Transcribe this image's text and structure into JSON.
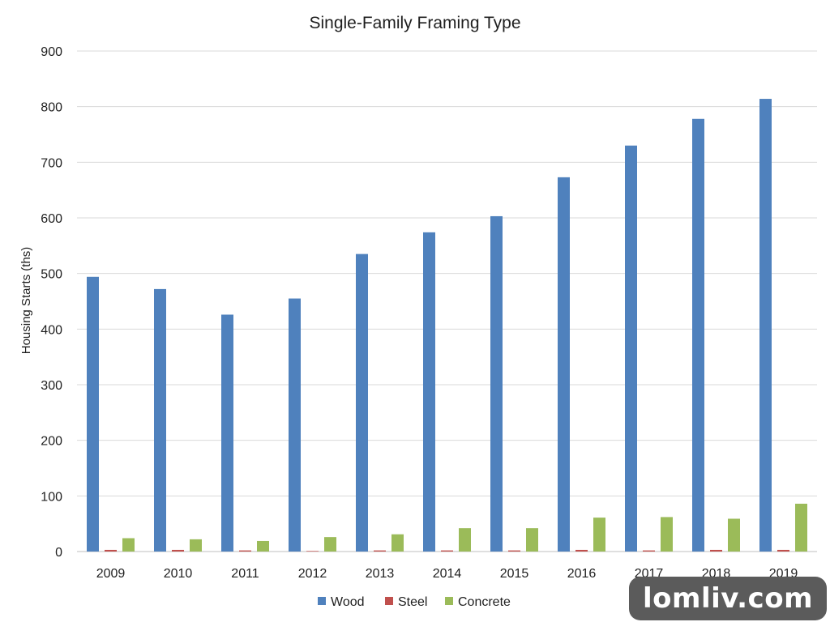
{
  "chart_data": {
    "type": "bar",
    "title": "Single-Family Framing Type",
    "xlabel": "",
    "ylabel": "Housing Starts (ths)",
    "ylim": [
      0,
      900
    ],
    "yticks": [
      0,
      100,
      200,
      300,
      400,
      500,
      600,
      700,
      800,
      900
    ],
    "grid": true,
    "legend_position": "bottom",
    "categories": [
      "2009",
      "2010",
      "2011",
      "2012",
      "2013",
      "2014",
      "2015",
      "2016",
      "2017",
      "2018",
      "2019"
    ],
    "series": [
      {
        "name": "Wood",
        "color": "#4f81bd",
        "values": [
          494,
          472,
          426,
          455,
          535,
          574,
          603,
          673,
          730,
          778,
          814
        ]
      },
      {
        "name": "Steel",
        "color": "#c0504d",
        "values": [
          3,
          3,
          2,
          1,
          2,
          2,
          2,
          3,
          2,
          3,
          3
        ]
      },
      {
        "name": "Concrete",
        "color": "#9bbb59",
        "values": [
          24,
          22,
          19,
          26,
          31,
          42,
          42,
          61,
          62,
          59,
          86
        ]
      }
    ]
  },
  "watermark": {
    "text": "lomliv.com"
  }
}
